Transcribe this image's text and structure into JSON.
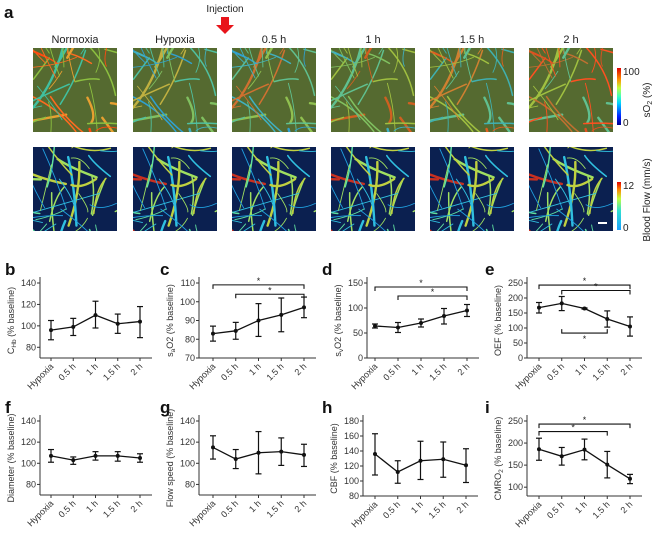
{
  "figure": {
    "panel_a": "a",
    "injection_label": "Injection",
    "injection_arrow_color": "#e8141b",
    "columns": [
      "Normoxia",
      "Hypoxia",
      "0.5 h",
      "1 h",
      "1.5 h",
      "2 h"
    ],
    "colorbars": [
      {
        "label": "sO",
        "sub": "2",
        "rest": " (%)",
        "max": "100",
        "min": "0",
        "colormap": "jet"
      },
      {
        "label": "Blood Flow (mm/s)",
        "sub": "",
        "rest": "",
        "max": "12",
        "min": "0",
        "colormap": "jet"
      }
    ],
    "significance_mark": "*"
  },
  "chart_data": [
    {
      "panel": "b",
      "type": "line",
      "categories": [
        "Hypoxia",
        "0.5 h",
        "1 h",
        "1.5 h",
        "2 h"
      ],
      "values": [
        96,
        99,
        110,
        102,
        104
      ],
      "err_low": [
        87,
        91,
        98,
        93,
        89
      ],
      "err_high": [
        105,
        107,
        123,
        111,
        118
      ],
      "ylabel": {
        "main": "C",
        "sub": "Hb",
        "rest": " (% baseline)"
      },
      "ylim": [
        70,
        140
      ],
      "yticks": [
        80,
        100,
        120,
        140
      ],
      "brackets": []
    },
    {
      "panel": "c",
      "type": "line",
      "categories": [
        "Hypoxia",
        "0.5 h",
        "1 h",
        "1.5 h",
        "2 h"
      ],
      "values": [
        83,
        84.5,
        90,
        93,
        97
      ],
      "err_low": [
        79,
        80,
        81.5,
        84,
        91.5
      ],
      "err_high": [
        87,
        89,
        99,
        102,
        102.5
      ],
      "ylabel": {
        "main": "s",
        "sub": "a",
        "rest": "O2 (% baseline)"
      },
      "ylim": [
        70,
        110
      ],
      "yticks": [
        70,
        80,
        90,
        100,
        110
      ],
      "brackets": [
        {
          "from": 0,
          "to": 4,
          "y": 109,
          "dir": "down"
        },
        {
          "from": 1,
          "to": 4,
          "y": 104,
          "dir": "down"
        }
      ]
    },
    {
      "panel": "d",
      "type": "line",
      "categories": [
        "Hypoxia",
        "0.5 h",
        "1 h",
        "1.5 h",
        "2 h"
      ],
      "values": [
        64,
        61,
        70,
        84,
        95
      ],
      "err_low": [
        60,
        51,
        62,
        68,
        83
      ],
      "err_high": [
        68,
        71,
        78,
        99,
        107
      ],
      "ylabel": {
        "main": "s",
        "sub": "v",
        "rest": "O2 (% baseline)"
      },
      "ylim": [
        0,
        150
      ],
      "yticks": [
        0,
        50,
        100,
        150
      ],
      "brackets": [
        {
          "from": 0,
          "to": 4,
          "y": 142,
          "dir": "down"
        },
        {
          "from": 1,
          "to": 4,
          "y": 124,
          "dir": "down"
        }
      ]
    },
    {
      "panel": "e",
      "type": "line",
      "categories": [
        "Hypoxia",
        "0.5 h",
        "1 h",
        "1.5 h",
        "2 h"
      ],
      "values": [
        168,
        182,
        165,
        130,
        105
      ],
      "err_low": [
        150,
        158,
        163,
        103,
        73
      ],
      "err_high": [
        185,
        205,
        167,
        157,
        137
      ],
      "ylabel": {
        "main": "OEF",
        "sub": "",
        "rest": " (% baseline)"
      },
      "ylim": [
        0,
        250
      ],
      "yticks": [
        0,
        50,
        100,
        150,
        200,
        250
      ],
      "brackets": [
        {
          "from": 0,
          "to": 4,
          "y": 243,
          "dir": "down"
        },
        {
          "from": 1,
          "to": 4,
          "y": 225,
          "dir": "down"
        },
        {
          "from": 1,
          "to": 3,
          "y": 83,
          "dir": "up"
        }
      ]
    },
    {
      "panel": "f",
      "type": "line",
      "categories": [
        "Hypoxia",
        "0.5 h",
        "1 h",
        "1.5 h",
        "2 h"
      ],
      "values": [
        107,
        103,
        107,
        107,
        105
      ],
      "err_low": [
        101,
        99,
        103,
        102,
        101
      ],
      "err_high": [
        113,
        106,
        111,
        111,
        109
      ],
      "ylabel": {
        "main": "Diameter",
        "sub": "",
        "rest": " (% baseline)"
      },
      "ylim": [
        70,
        140
      ],
      "yticks": [
        80,
        100,
        120,
        140
      ],
      "brackets": []
    },
    {
      "panel": "g",
      "type": "line",
      "categories": [
        "Hypoxia",
        "0.5 h",
        "1 h",
        "1.5 h",
        "2 h"
      ],
      "values": [
        115,
        104,
        110,
        111,
        108
      ],
      "err_low": [
        104,
        95,
        90,
        98,
        97
      ],
      "err_high": [
        126,
        113,
        130,
        124,
        118
      ],
      "ylabel": {
        "main": "Flow speed",
        "sub": "",
        "rest": " (% baseline)"
      },
      "ylim": [
        70,
        140
      ],
      "yticks": [
        80,
        100,
        120,
        140
      ],
      "brackets": []
    },
    {
      "panel": "h",
      "type": "line",
      "categories": [
        "Hypoxia",
        "0.5 h",
        "1 h",
        "1.5 h",
        "2 h"
      ],
      "values": [
        136,
        112,
        127,
        129,
        121
      ],
      "err_low": [
        108,
        97,
        102,
        105,
        98
      ],
      "err_high": [
        163,
        127,
        153,
        152,
        143
      ],
      "ylabel": {
        "main": "CBF",
        "sub": "",
        "rest": " (% baseline)"
      },
      "ylim": [
        80,
        180
      ],
      "yticks": [
        80,
        100,
        120,
        140,
        160,
        180
      ],
      "brackets": []
    },
    {
      "panel": "i",
      "type": "line",
      "categories": [
        "Hypoxia",
        "0.5 h",
        "1 h",
        "1.5 h",
        "2 h"
      ],
      "values": [
        186,
        170,
        185,
        151,
        119
      ],
      "err_low": [
        161,
        150,
        162,
        121,
        108
      ],
      "err_high": [
        211,
        190,
        209,
        181,
        129
      ],
      "ylabel": {
        "main": "CMRO",
        "sub": "2",
        "rest": " (% baseline)"
      },
      "ylim": [
        80,
        250
      ],
      "yticks": [
        100,
        150,
        200,
        250
      ],
      "brackets": [
        {
          "from": 0,
          "to": 4,
          "y": 243,
          "dir": "down"
        },
        {
          "from": 0,
          "to": 3,
          "y": 226,
          "dir": "down"
        }
      ]
    }
  ]
}
